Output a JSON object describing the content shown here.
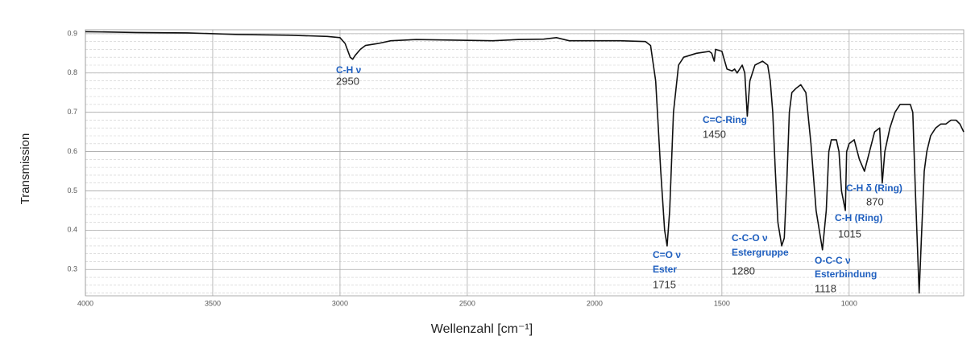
{
  "chart_data": {
    "type": "line",
    "y_label": "Transmission",
    "x_label": "Wellenzahl [cm⁻¹]",
    "xlim": [
      4000,
      550
    ],
    "ylim": [
      0.233,
      0.91
    ],
    "xticks": [
      4000,
      3500,
      3000,
      2500,
      2000,
      1500,
      1000
    ],
    "yticks": [
      0.3,
      0.4,
      0.5,
      0.6,
      0.7,
      0.8,
      0.9
    ],
    "grid": true,
    "minor_grid": 5,
    "color": "#111111",
    "x": [
      4000,
      3800,
      3600,
      3400,
      3200,
      3050,
      3000,
      2980,
      2960,
      2950,
      2940,
      2920,
      2900,
      2850,
      2800,
      2700,
      2600,
      2500,
      2400,
      2300,
      2200,
      2150,
      2100,
      2000,
      1900,
      1800,
      1780,
      1760,
      1740,
      1725,
      1715,
      1705,
      1690,
      1670,
      1650,
      1600,
      1550,
      1540,
      1530,
      1525,
      1500,
      1480,
      1460,
      1450,
      1440,
      1420,
      1410,
      1400,
      1390,
      1370,
      1340,
      1320,
      1310,
      1300,
      1290,
      1280,
      1265,
      1255,
      1245,
      1235,
      1225,
      1210,
      1190,
      1170,
      1150,
      1130,
      1105,
      1090,
      1080,
      1070,
      1050,
      1040,
      1030,
      1015,
      1010,
      1000,
      980,
      960,
      940,
      920,
      900,
      880,
      870,
      860,
      840,
      820,
      800,
      780,
      760,
      750,
      740,
      725,
      715,
      705,
      695,
      680,
      660,
      640,
      620,
      600,
      580,
      565,
      550
    ],
    "values": [
      0.905,
      0.903,
      0.902,
      0.898,
      0.896,
      0.893,
      0.89,
      0.875,
      0.84,
      0.835,
      0.845,
      0.86,
      0.87,
      0.875,
      0.882,
      0.885,
      0.884,
      0.883,
      0.882,
      0.885,
      0.886,
      0.89,
      0.882,
      0.882,
      0.882,
      0.88,
      0.87,
      0.78,
      0.55,
      0.4,
      0.36,
      0.45,
      0.7,
      0.82,
      0.84,
      0.85,
      0.855,
      0.85,
      0.83,
      0.86,
      0.855,
      0.81,
      0.805,
      0.81,
      0.8,
      0.82,
      0.8,
      0.69,
      0.78,
      0.82,
      0.83,
      0.82,
      0.78,
      0.7,
      0.55,
      0.42,
      0.36,
      0.38,
      0.52,
      0.7,
      0.75,
      0.76,
      0.77,
      0.75,
      0.62,
      0.45,
      0.35,
      0.45,
      0.6,
      0.63,
      0.63,
      0.6,
      0.5,
      0.45,
      0.6,
      0.62,
      0.63,
      0.58,
      0.55,
      0.6,
      0.65,
      0.66,
      0.52,
      0.6,
      0.66,
      0.7,
      0.72,
      0.72,
      0.72,
      0.7,
      0.5,
      0.24,
      0.4,
      0.55,
      0.6,
      0.64,
      0.66,
      0.67,
      0.67,
      0.68,
      0.68,
      0.67,
      0.65
    ],
    "annotations": [
      {
        "lines": [
          "C-H ν"
        ],
        "wavenumber": 2950
      },
      {
        "lines": [
          "C=O ν",
          "Ester"
        ],
        "wavenumber": 1715
      },
      {
        "lines": [
          "C=C-Ring"
        ],
        "wavenumber": 1450
      },
      {
        "lines": [
          "C-C-O ν",
          "Estergruppe"
        ],
        "wavenumber": 1280
      },
      {
        "lines": [
          "O-C-C ν",
          "Esterbindung"
        ],
        "wavenumber": 1118
      },
      {
        "lines": [
          "C-H (Ring)"
        ],
        "wavenumber": 1015
      },
      {
        "lines": [
          "C-H δ (Ring)"
        ],
        "wavenumber": 870
      }
    ]
  }
}
